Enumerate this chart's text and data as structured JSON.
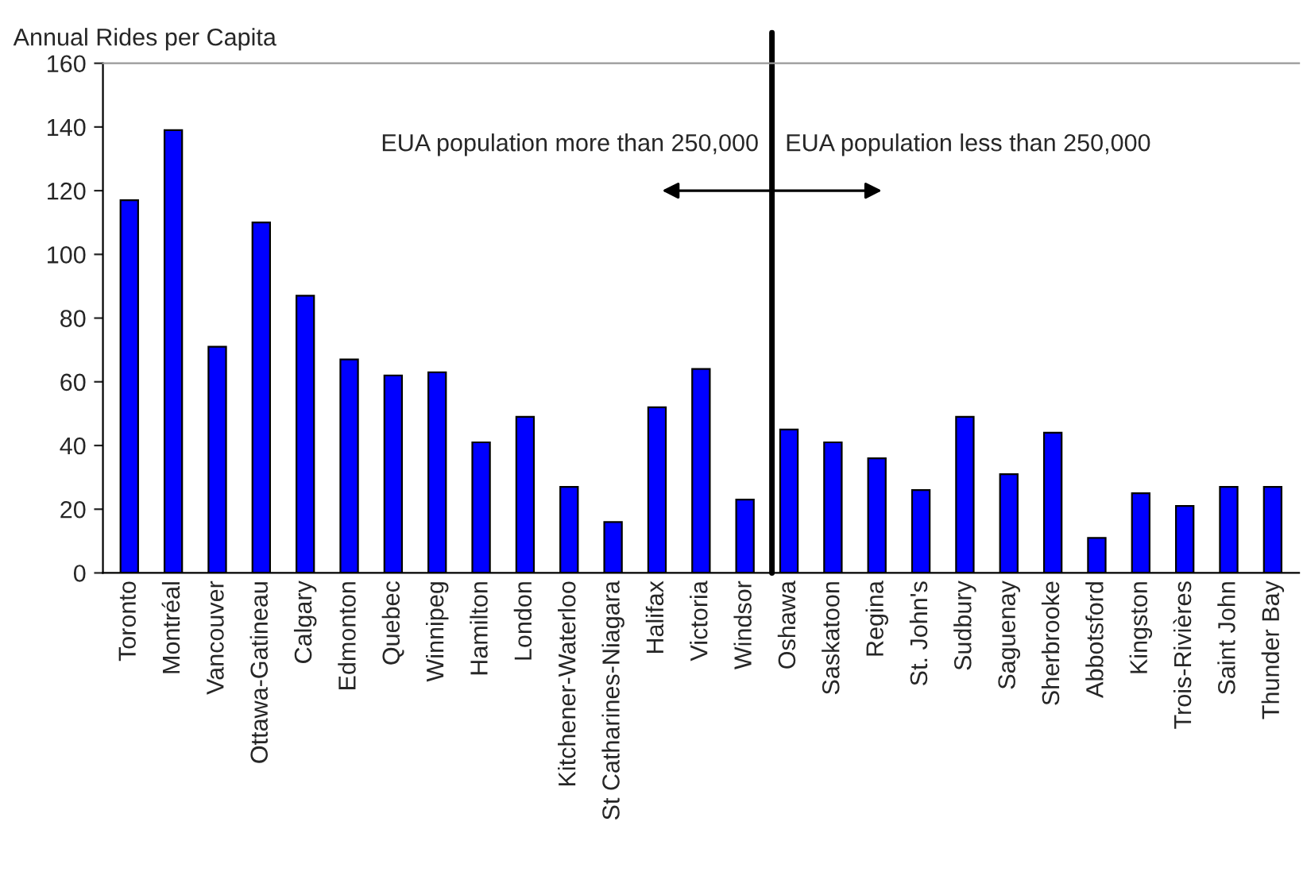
{
  "chart_data": {
    "type": "bar",
    "ylabel": "Annual Rides per Capita",
    "categories": [
      "Toronto",
      "Montréal",
      "Vancouver",
      "Ottawa-Gatineau",
      "Calgary",
      "Edmonton",
      "Quebec",
      "Winnipeg",
      "Hamilton",
      "London",
      "Kitchener-Waterloo",
      "St Catharines-Niagara",
      "Halifax",
      "Victoria",
      "Windsor",
      "Oshawa",
      "Saskatoon",
      "Regina",
      "St. John's",
      "Sudbury",
      "Saguenay",
      "Sherbrooke",
      "Abbotsford",
      "Kingston",
      "Trois-Rivières",
      "Saint John",
      "Thunder Bay"
    ],
    "values": [
      117,
      139,
      71,
      110,
      87,
      67,
      62,
      63,
      41,
      49,
      27,
      16,
      52,
      64,
      23,
      45,
      41,
      36,
      26,
      49,
      31,
      44,
      11,
      25,
      21,
      27,
      27
    ],
    "color": "#0000ff",
    "ylim": [
      0,
      160
    ],
    "yticks": [
      0,
      20,
      40,
      60,
      80,
      100,
      120,
      140,
      160
    ],
    "grid": false,
    "annotations": [
      "EUA population more than 250,000",
      "EUA population less than 250,000"
    ]
  }
}
